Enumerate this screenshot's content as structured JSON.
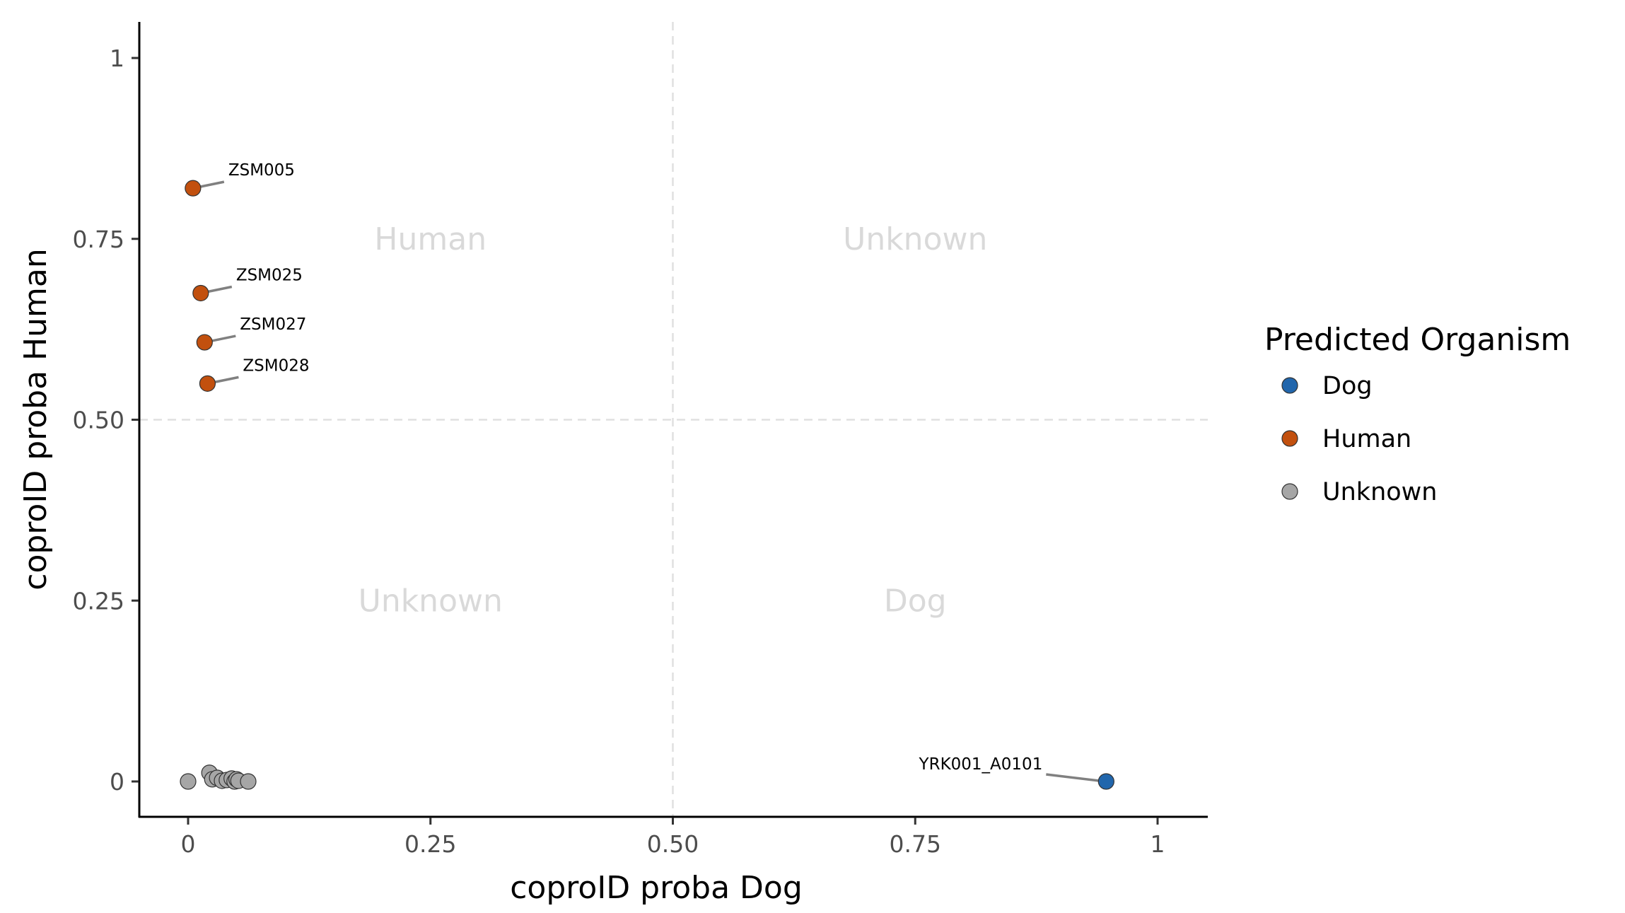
{
  "chart_data": {
    "type": "scatter",
    "title": "",
    "xlabel": "coproID proba Dog",
    "ylabel": "coproID proba Human",
    "xlim": [
      -0.05,
      1.05
    ],
    "ylim": [
      -0.05,
      1.05
    ],
    "grid": false,
    "x_ticks": [
      {
        "value": 0,
        "label": "0"
      },
      {
        "value": 0.25,
        "label": "0.25"
      },
      {
        "value": 0.5,
        "label": "0.50"
      },
      {
        "value": 0.75,
        "label": "0.75"
      },
      {
        "value": 1,
        "label": "1"
      }
    ],
    "y_ticks": [
      {
        "value": 0,
        "label": "0"
      },
      {
        "value": 0.25,
        "label": "0.25"
      },
      {
        "value": 0.5,
        "label": "0.50"
      },
      {
        "value": 0.75,
        "label": "0.75"
      },
      {
        "value": 1,
        "label": "1"
      }
    ],
    "threshold_lines": {
      "x": 0.5,
      "y": 0.5,
      "style": "dashed",
      "color": "#e0e0e0"
    },
    "quadrant_labels": [
      {
        "text": "Human",
        "x": 0.25,
        "y": 0.75
      },
      {
        "text": "Unknown",
        "x": 0.75,
        "y": 0.75
      },
      {
        "text": "Unknown",
        "x": 0.25,
        "y": 0.25
      },
      {
        "text": "Dog",
        "x": 0.75,
        "y": 0.25
      }
    ],
    "legend": {
      "title": "Predicted Organism",
      "placement": "right",
      "entries": [
        {
          "name": "Dog",
          "color": "#2166ac"
        },
        {
          "name": "Human",
          "color": "#c2500e"
        },
        {
          "name": "Unknown",
          "color": "#a6a6a6"
        }
      ]
    },
    "series": [
      {
        "name": "Dog",
        "color": "#2166ac",
        "points": [
          {
            "x": 0.947,
            "y": 0.0,
            "label": "YRK001_A0101"
          }
        ]
      },
      {
        "name": "Human",
        "color": "#c2500e",
        "points": [
          {
            "x": 0.005,
            "y": 0.82,
            "label": "ZSM005"
          },
          {
            "x": 0.013,
            "y": 0.675,
            "label": "ZSM025"
          },
          {
            "x": 0.017,
            "y": 0.607,
            "label": "ZSM027"
          },
          {
            "x": 0.02,
            "y": 0.55,
            "label": "ZSM028"
          }
        ]
      },
      {
        "name": "Unknown",
        "color": "#a6a6a6",
        "points": [
          {
            "x": 0.0,
            "y": 0.0
          },
          {
            "x": 0.022,
            "y": 0.012
          },
          {
            "x": 0.025,
            "y": 0.003
          },
          {
            "x": 0.03,
            "y": 0.005
          },
          {
            "x": 0.035,
            "y": 0.001
          },
          {
            "x": 0.04,
            "y": 0.002
          },
          {
            "x": 0.045,
            "y": 0.004
          },
          {
            "x": 0.048,
            "y": 0.0
          },
          {
            "x": 0.05,
            "y": 0.003
          },
          {
            "x": 0.052,
            "y": 0.001
          },
          {
            "x": 0.062,
            "y": 0.0
          }
        ]
      }
    ]
  }
}
